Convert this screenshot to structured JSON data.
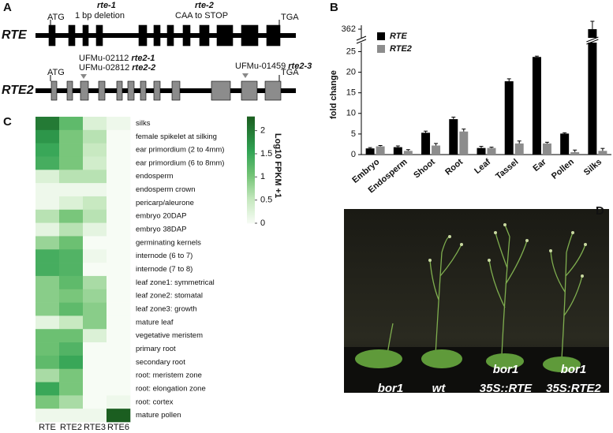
{
  "figure_a": {
    "label": "A",
    "genes": [
      {
        "name": "RTE",
        "start": "ATG",
        "stop": "TGA",
        "annotations": [
          {
            "allele": "rte-1",
            "note": "1 bp deletion"
          },
          {
            "allele": "rte-2",
            "note": "CAA to STOP"
          }
        ]
      },
      {
        "name": "RTE2",
        "start": "ATG",
        "stop": "TGA",
        "annotations": [
          {
            "line": "UFMu-02112",
            "allele": "rte2-1"
          },
          {
            "line": "UFMu-02812",
            "allele": "rte2-2"
          },
          {
            "line": "UFMu-01459",
            "allele": "rte2-3"
          }
        ]
      }
    ]
  },
  "chart_data": [
    {
      "type": "bar",
      "panel": "B",
      "y_label": "fold change",
      "categories": [
        "Embryo",
        "Endosperm",
        "Shoot",
        "Root",
        "Leaf",
        "Tassel",
        "Ear",
        "Pollen",
        "Silks"
      ],
      "series": [
        {
          "name": "RTE",
          "color": "#000000",
          "values": [
            1.5,
            1.8,
            5.3,
            8.6,
            1.6,
            17.8,
            23.7,
            5.1,
            362
          ],
          "errors": [
            0.2,
            0.3,
            0.4,
            0.5,
            0.4,
            0.6,
            0.2,
            0.2,
            2
          ]
        },
        {
          "name": "RTE2",
          "color": "#8c8c8c",
          "values": [
            2.0,
            0.9,
            2.2,
            5.6,
            1.6,
            2.7,
            2.7,
            0.6,
            0.9
          ],
          "errors": [
            0.2,
            0.3,
            0.5,
            0.6,
            0.2,
            0.6,
            0.3,
            0.5,
            0.6
          ]
        }
      ],
      "ylim": [
        0,
        363
      ],
      "ybreak": [
        27,
        360
      ],
      "yticks": [
        0,
        5,
        10,
        15,
        20,
        25,
        362
      ]
    },
    {
      "type": "heatmap",
      "panel": "C",
      "colorbar_label": "Log10 FPKM +1",
      "columns": [
        "RTE",
        "RTE2",
        "RTE3",
        "RTE6"
      ],
      "rows": [
        "silks",
        "female spikelet at silking",
        "ear primordium (2 to 4mm)",
        "ear primordium (6 to 8mm)",
        "endosperm",
        "endosperm crown",
        "pericarp/aleurone",
        "embryo 20DAP",
        "embryo 38DAP",
        "germinating kernels",
        "internode (6 to 7)",
        "internode (7 to 8)",
        "leaf zone1: symmetrical",
        "leaf zone2: stomatal",
        "leaf zone3: growth",
        "mature leaf",
        "vegetative meristem",
        "primary root",
        "secondary root",
        "root: meristem zone",
        "root: elongation zone",
        "root: cortex",
        "mature pollen"
      ],
      "values": [
        [
          2.0,
          1.2,
          0.3,
          0.1
        ],
        [
          1.7,
          1.0,
          0.6,
          0
        ],
        [
          1.5,
          1.0,
          0.5,
          0
        ],
        [
          1.4,
          1.0,
          0.4,
          0
        ],
        [
          0.3,
          0.6,
          0.6,
          0
        ],
        [
          0.1,
          0.1,
          0.1,
          0
        ],
        [
          0.1,
          0.3,
          0.5,
          0
        ],
        [
          0.6,
          1.0,
          0.6,
          0
        ],
        [
          0.2,
          0.6,
          0.2,
          0
        ],
        [
          0.8,
          1.1,
          0,
          0
        ],
        [
          1.4,
          1.3,
          0.1,
          0
        ],
        [
          1.4,
          1.3,
          0,
          0
        ],
        [
          0.9,
          1.2,
          0.7,
          0
        ],
        [
          0.9,
          1.0,
          0.8,
          0
        ],
        [
          0.9,
          1.2,
          0.9,
          0
        ],
        [
          0.2,
          0.5,
          0.9,
          0
        ],
        [
          1.1,
          1.1,
          0.3,
          0
        ],
        [
          1.1,
          1.3,
          0,
          0
        ],
        [
          1.2,
          1.5,
          0,
          0
        ],
        [
          0.7,
          1.0,
          0,
          0
        ],
        [
          1.5,
          1.0,
          0,
          0
        ],
        [
          1.0,
          0.7,
          0,
          0.1
        ],
        [
          0.1,
          0.1,
          0.1,
          2.3
        ]
      ],
      "clim": [
        0,
        2.3
      ],
      "cticks": [
        0,
        0.5,
        1,
        1.5,
        2
      ]
    }
  ],
  "figure_d": {
    "label": "D",
    "plants": [
      {
        "lines": [
          "bor1"
        ]
      },
      {
        "lines": [
          "wt"
        ]
      },
      {
        "lines": [
          "bor1",
          "35S::RTE"
        ]
      },
      {
        "lines": [
          "bor1",
          "35S:RTE2"
        ]
      }
    ]
  }
}
